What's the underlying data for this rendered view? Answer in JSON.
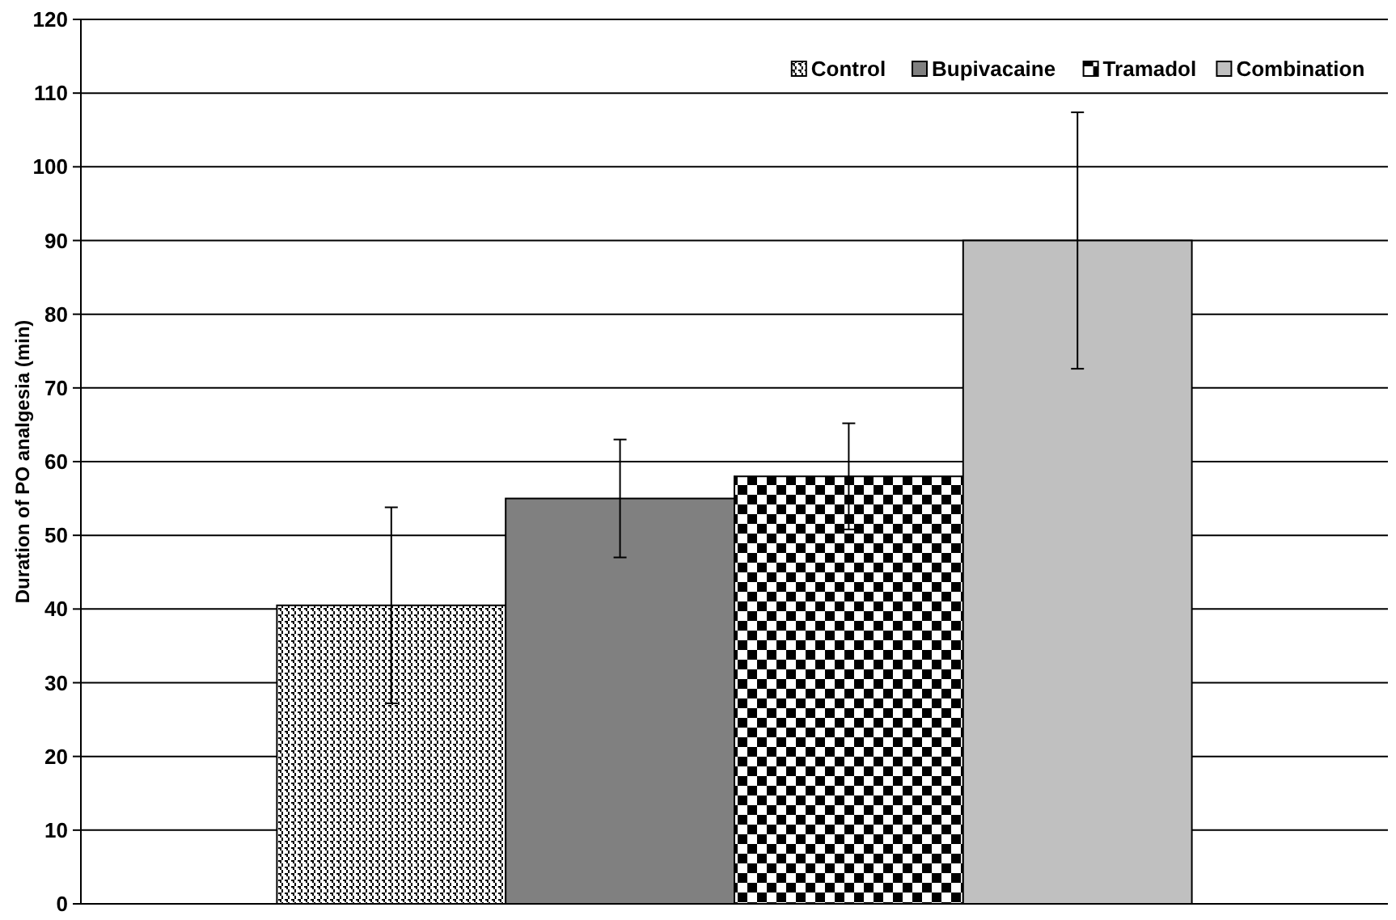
{
  "chart_data": {
    "type": "bar",
    "ylabel": "Duration of PO analgesia (min)",
    "categories": [
      null
    ],
    "series": [
      {
        "name": "Control",
        "color": "#000000",
        "values": [
          40.5
        ],
        "errors": [
          13.3
        ]
      },
      {
        "name": "Bupivacaine",
        "color": "#808080",
        "values": [
          55
        ],
        "errors": [
          8
        ]
      },
      {
        "name": "Tramadol",
        "color": "#000000",
        "values": [
          58
        ],
        "errors": [
          7.2
        ]
      },
      {
        "name": "Combination",
        "color": "#c0c0c0",
        "values": [
          90
        ],
        "errors": [
          17.4
        ]
      }
    ],
    "ylim": [
      0,
      120
    ],
    "yticks": [
      0,
      10,
      20,
      30,
      40,
      50,
      60,
      70,
      80,
      90,
      100,
      110,
      120
    ],
    "grid": "y",
    "legend": "top right",
    "tick_labels": "y"
  }
}
